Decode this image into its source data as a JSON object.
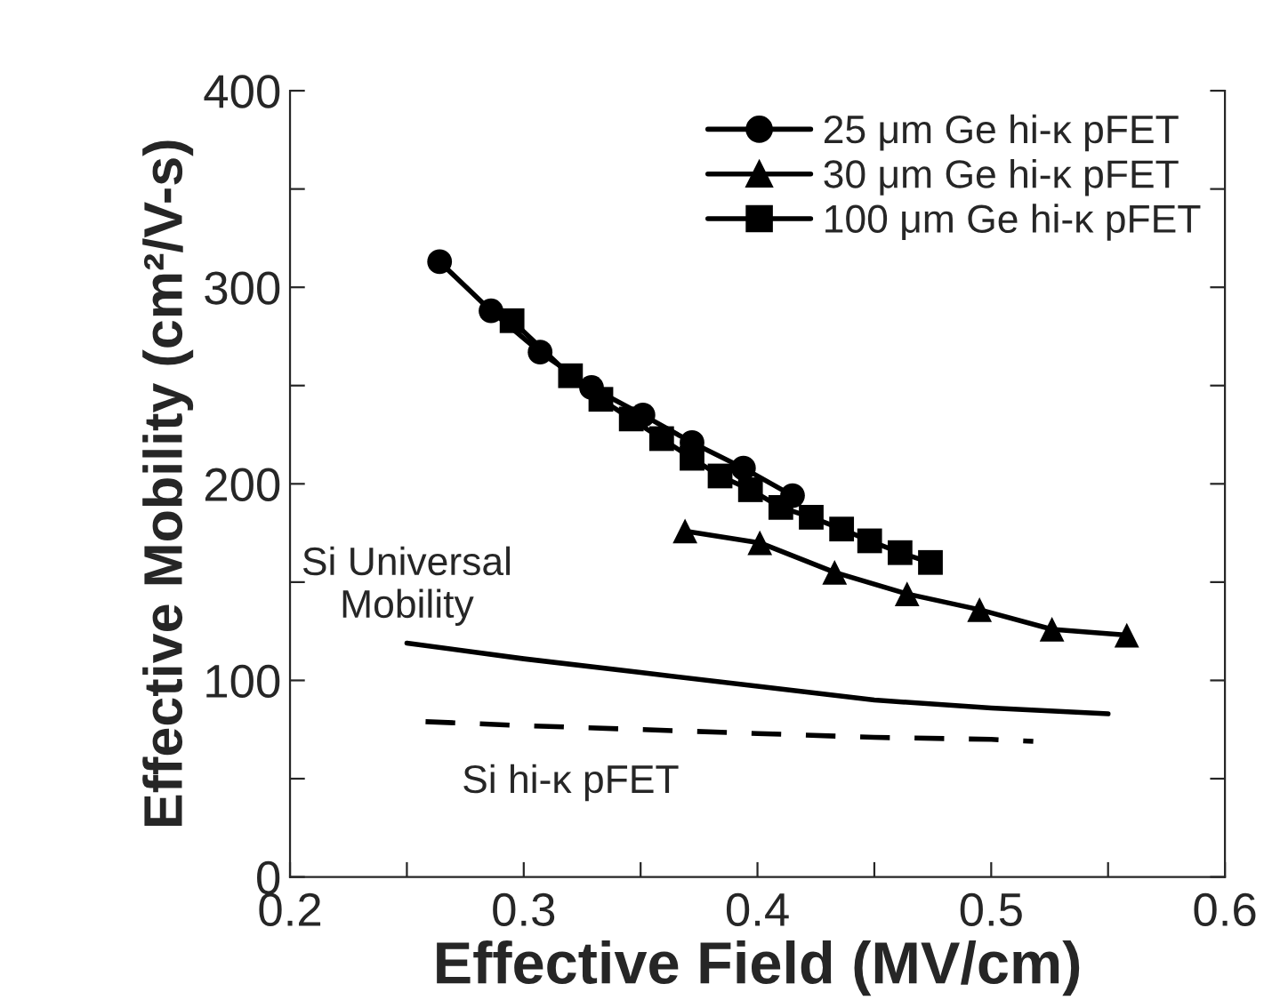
{
  "chart_data": {
    "type": "line",
    "xlabel": "Effective Field (MV/cm)",
    "ylabel": "Effective Mobility (cm²/V-s)",
    "xlim": [
      0.2,
      0.6
    ],
    "ylim": [
      0,
      400
    ],
    "xticks": [
      0.2,
      {
        "value": 0.25,
        "label": null
      },
      0.3,
      {
        "value": 0.35,
        "label": null
      },
      0.4,
      {
        "value": 0.45,
        "label": null
      },
      0.5,
      {
        "value": 0.55,
        "label": null
      },
      0.6
    ],
    "yticks": [
      0,
      {
        "value": 50,
        "label": null
      },
      100,
      {
        "value": 150,
        "label": null
      },
      200,
      {
        "value": 250,
        "label": null
      },
      300,
      {
        "value": 350,
        "label": null
      },
      400
    ],
    "grid": false,
    "legend": "top right",
    "series": [
      {
        "name": "25 μm Ge hi-κ pFET",
        "color": "#000000",
        "marker": "circle",
        "line_style": "solid",
        "x": [
          0.264,
          0.286,
          0.307,
          0.329,
          0.351,
          0.372,
          0.394,
          0.415
        ],
        "values": [
          313,
          288,
          267,
          249,
          235,
          221,
          208,
          194
        ]
      },
      {
        "name": "30 μm Ge hi-κ pFET",
        "color": "#000000",
        "marker": "triangle",
        "line_style": "solid",
        "x": [
          0.369,
          0.401,
          0.433,
          0.464,
          0.495,
          0.526,
          0.558
        ],
        "values": [
          176,
          170,
          155,
          144,
          136,
          126,
          123
        ]
      },
      {
        "name": "100 μm Ge hi-κ pFET",
        "color": "#000000",
        "marker": "square",
        "line_style": "solid",
        "x": [
          0.295,
          0.32,
          0.333,
          0.346,
          0.359,
          0.372,
          0.384,
          0.397,
          0.41,
          0.423,
          0.436,
          0.448,
          0.461,
          0.474
        ],
        "values": [
          283,
          255,
          243,
          233,
          223,
          213,
          204,
          197,
          188,
          183,
          177,
          171,
          165,
          160
        ]
      },
      {
        "color": "#000000",
        "marker": "none",
        "line_style": "solid",
        "x": [
          0.25,
          0.3,
          0.35,
          0.4,
          0.45,
          0.5,
          0.55
        ],
        "values": [
          119,
          111,
          104,
          97,
          90,
          86,
          83
        ]
      },
      {
        "color": "#000000",
        "marker": "none",
        "line_style": "dashed",
        "x": [
          0.258,
          0.3,
          0.35,
          0.4,
          0.45,
          0.5,
          0.518
        ],
        "values": [
          79,
          77,
          75,
          73,
          71,
          70,
          69
        ]
      }
    ],
    "annotations": [
      "Si Universal\nMobility",
      "Si hi-κ pFET"
    ]
  }
}
